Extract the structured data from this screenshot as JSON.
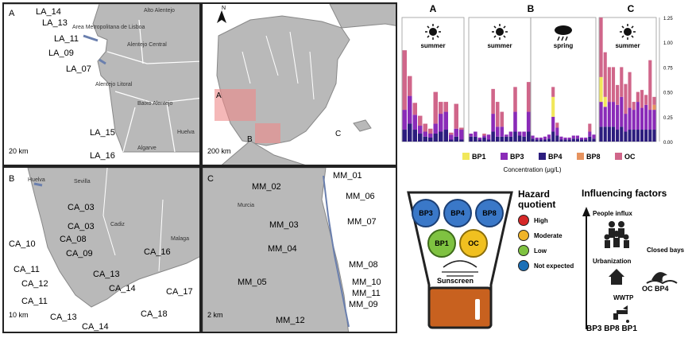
{
  "maps": {
    "panelA": {
      "letter": "A",
      "regions": [
        "Alto Alentejo",
        "Area Metropolitana de Lisboa",
        "Alentejo Central",
        "Alentejo Litoral",
        "Baixo Alentejo",
        "Algarve",
        "Huelva"
      ],
      "sites": [
        "LA_14",
        "LA_13",
        "LA_11",
        "LA_09",
        "LA_07",
        "LA_15",
        "LA_16"
      ],
      "scale": "20 km"
    },
    "panelIberia": {
      "north": "N",
      "zones": [
        "A",
        "B",
        "C"
      ],
      "scale": "200 km"
    },
    "panelB": {
      "letter": "B",
      "regions": [
        "Huelva",
        "Sevilla",
        "Cadiz",
        "Malaga"
      ],
      "sites": [
        "CA_03",
        "CA_03",
        "CA_08",
        "CA_10",
        "CA_09",
        "CA_11",
        "CA_12",
        "CA_11",
        "CA_13",
        "CA_14",
        "CA_13",
        "CA_14",
        "CA_16",
        "CA_17",
        "CA_18"
      ],
      "scale": "10 km"
    },
    "panelC": {
      "letter": "C",
      "regions": [
        "Murcia"
      ],
      "sites": [
        "MM_01",
        "MM_02",
        "MM_06",
        "MM_07",
        "MM_03",
        "MM_04",
        "MM_08",
        "MM_10",
        "MM_05",
        "MM_11",
        "MM_09",
        "MM_12"
      ],
      "scale": "2 km"
    }
  },
  "chart_data": {
    "type": "bar",
    "stacked": true,
    "panels": [
      {
        "letter": "A",
        "seasons": [
          "summer"
        ]
      },
      {
        "letter": "B",
        "seasons": [
          "summer",
          "spring"
        ]
      },
      {
        "letter": "C",
        "seasons": [
          "summer"
        ]
      }
    ],
    "yticks": [
      "0.00",
      "0.25",
      "0.50",
      "0.75",
      "1.00",
      "1.25"
    ],
    "ylim": [
      0,
      1.25
    ],
    "xlabel": "Concentration (μg/L)",
    "legend": [
      "BP1",
      "BP3",
      "BP4",
      "BP8",
      "OC"
    ],
    "colors": {
      "BP1": "#f1e75a",
      "BP3": "#8a2bb8",
      "BP4": "#2c1d7e",
      "BP8": "#e6935f",
      "OC": "#d0668a"
    },
    "groups": [
      {
        "bars": [
          [
            0,
            0.2,
            0.12,
            0,
            0.6
          ],
          [
            0,
            0.28,
            0.18,
            0,
            0.2
          ],
          [
            0,
            0.15,
            0.12,
            0,
            0.12
          ],
          [
            0,
            0.08,
            0.08,
            0,
            0.1
          ],
          [
            0,
            0.05,
            0.05,
            0,
            0.08
          ],
          [
            0,
            0.04,
            0.04,
            0,
            0.05
          ],
          [
            0,
            0.1,
            0.08,
            0,
            0.32
          ],
          [
            0,
            0.18,
            0.1,
            0,
            0.12
          ],
          [
            0,
            0.18,
            0.12,
            0,
            0.1
          ],
          [
            0,
            0.05,
            0.02,
            0,
            0.02
          ],
          [
            0,
            0.08,
            0.05,
            0,
            0.25
          ],
          [
            0,
            0.1,
            0.02,
            0,
            0.02
          ]
        ]
      },
      {
        "bars": [
          [
            0,
            0.03,
            0.05,
            0,
            0
          ],
          [
            0,
            0.05,
            0.05,
            0,
            0
          ],
          [
            0,
            0.02,
            0.02,
            0,
            0
          ],
          [
            0,
            0.02,
            0.04,
            0,
            0.02
          ],
          [
            0,
            0.05,
            0.02,
            0,
            0
          ],
          [
            0,
            0.18,
            0.1,
            0,
            0.25
          ],
          [
            0,
            0.1,
            0.05,
            0,
            0.25
          ],
          [
            0,
            0.1,
            0.05,
            0,
            0.15
          ],
          [
            0,
            0.02,
            0.05,
            0,
            0
          ],
          [
            0,
            0.05,
            0.05,
            0,
            0
          ],
          [
            0,
            0.2,
            0.1,
            0,
            0.25
          ],
          [
            0,
            0.04,
            0.06,
            0,
            0
          ],
          [
            0,
            0.05,
            0.05,
            0,
            0
          ],
          [
            0,
            0.2,
            0.1,
            0,
            0.3
          ]
        ]
      },
      {
        "bars": [
          [
            0,
            0.03,
            0.03,
            0,
            0
          ],
          [
            0,
            0.02,
            0.02,
            0,
            0
          ],
          [
            0,
            0.02,
            0.02,
            0,
            0
          ],
          [
            0,
            0.03,
            0.02,
            0,
            0
          ],
          [
            0,
            0.04,
            0.03,
            0,
            0
          ],
          [
            0.2,
            0.15,
            0.1,
            0,
            0.1
          ],
          [
            0,
            0.08,
            0.06,
            0,
            0.05
          ],
          [
            0,
            0.03,
            0.02,
            0,
            0
          ],
          [
            0,
            0.02,
            0.02,
            0,
            0
          ],
          [
            0,
            0.02,
            0.02,
            0,
            0
          ],
          [
            0,
            0.03,
            0.03,
            0,
            0
          ],
          [
            0,
            0.03,
            0.03,
            0,
            0
          ],
          [
            0,
            0.02,
            0.02,
            0,
            0
          ],
          [
            0,
            0.02,
            0.02,
            0,
            0
          ],
          [
            0,
            0.05,
            0.05,
            0,
            0.08
          ],
          [
            0,
            0.04,
            0.03,
            0,
            0
          ]
        ]
      },
      {
        "bars": [
          [
            0.25,
            0.25,
            0.15,
            0,
            0.6
          ],
          [
            0.1,
            0.2,
            0.15,
            0,
            0.45
          ],
          [
            0,
            0.25,
            0.15,
            0,
            0.35
          ],
          [
            0,
            0.25,
            0.15,
            0,
            0.35
          ],
          [
            0,
            0.25,
            0.12,
            0,
            0.2
          ],
          [
            0,
            0.3,
            0.15,
            0,
            0.3
          ],
          [
            0,
            0.18,
            0.1,
            0,
            0.3
          ],
          [
            0,
            0.22,
            0.12,
            0,
            0.36
          ],
          [
            0,
            0.2,
            0.12,
            0,
            0.08
          ],
          [
            0,
            0.28,
            0.12,
            0,
            0.1
          ],
          [
            0,
            0.22,
            0.12,
            0,
            0.18
          ],
          [
            0,
            0.25,
            0.12,
            0,
            0.1
          ],
          [
            0,
            0.2,
            0.12,
            0,
            0.5
          ],
          [
            0,
            0.2,
            0.12,
            0.05,
            0.08
          ]
        ]
      }
    ]
  },
  "hazard": {
    "title": "Hazard",
    "title2": "quotient",
    "compounds": [
      "BP3",
      "BP4",
      "BP8",
      "BP1",
      "OC"
    ],
    "brand": "Sunscreen",
    "levels": [
      {
        "label": "High",
        "color": "#d62828"
      },
      {
        "label": "Moderate",
        "color": "#f0b429"
      },
      {
        "label": "Low",
        "color": "#7fc241"
      },
      {
        "label": "Not expected",
        "color": "#1b6fb6"
      }
    ]
  },
  "factors": {
    "title": "Influencing factors",
    "people": "People influx",
    "urbanization": "Urbanization",
    "closed_bays": "Closed bays",
    "bays_compounds": "OC BP4",
    "wwtp": "WWTP",
    "wwtp_compounds": "BP3 BP8 BP1"
  }
}
